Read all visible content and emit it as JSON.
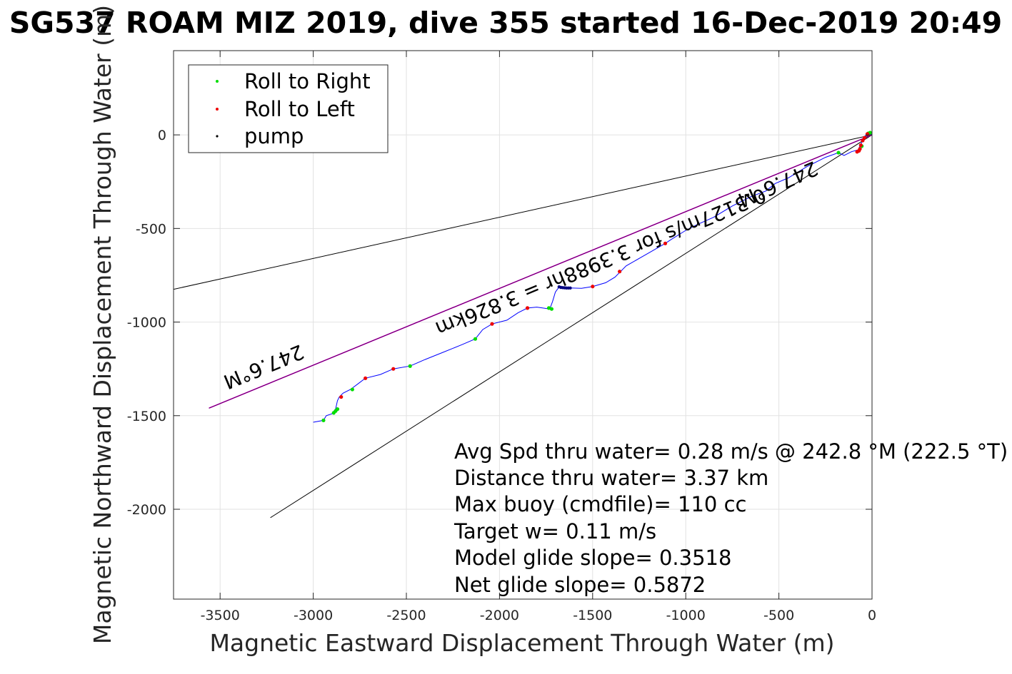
{
  "chart_data": {
    "type": "scatter",
    "title": "SG537 ROAM MIZ 2019, dive 355 started 16-Dec-2019 20:49",
    "xlabel": "Magnetic Eastward Displacement Through Water (m)",
    "ylabel": "Magnetic Northward Displacement Through Water (m)",
    "xlim": [
      -3750,
      0
    ],
    "ylim": [
      -2480,
      450
    ],
    "xticks": [
      -3500,
      -3000,
      -2500,
      -2000,
      -1500,
      -1000,
      -500,
      0
    ],
    "xtick_labels": [
      "-3500",
      "-3000",
      "-2500",
      "-2000",
      "-1500",
      "-1000",
      "-500",
      "0"
    ],
    "yticks": [
      0,
      -500,
      -1000,
      -1500,
      -2000
    ],
    "ytick_labels": [
      "0",
      "-500",
      "-1000",
      "-1500",
      "-2000"
    ],
    "grid": true,
    "legend": {
      "position": "top-left",
      "entries": [
        {
          "label": "Roll to Right",
          "color": "#00dd00"
        },
        {
          "label": "Roll to Left",
          "color": "#ee0000"
        },
        {
          "label": "pump",
          "color": "#000000"
        }
      ]
    },
    "colors": {
      "track": "#0000ff",
      "heading_line": "#cc00cc",
      "bounds": "#000000"
    },
    "track": [
      [
        0,
        0
      ],
      [
        -15,
        10
      ],
      [
        -30,
        5
      ],
      [
        -45,
        -20
      ],
      [
        -60,
        -50
      ],
      [
        -75,
        -80
      ],
      [
        -110,
        -90
      ],
      [
        -150,
        -110
      ],
      [
        -180,
        -95
      ],
      [
        -250,
        -120
      ],
      [
        -350,
        -170
      ],
      [
        -450,
        -230
      ],
      [
        -520,
        -260
      ],
      [
        -570,
        -300
      ],
      [
        -650,
        -330
      ],
      [
        -750,
        -380
      ],
      [
        -850,
        -440
      ],
      [
        -940,
        -480
      ],
      [
        -1000,
        -510
      ],
      [
        -1080,
        -560
      ],
      [
        -1110,
        -580
      ],
      [
        -1180,
        -620
      ],
      [
        -1250,
        -660
      ],
      [
        -1320,
        -700
      ],
      [
        -1350,
        -730
      ],
      [
        -1380,
        -760
      ],
      [
        -1430,
        -790
      ],
      [
        -1500,
        -810
      ],
      [
        -1560,
        -820
      ],
      [
        -1620,
        -818
      ],
      [
        -1680,
        -812
      ],
      [
        -1700,
        -840
      ],
      [
        -1715,
        -890
      ],
      [
        -1730,
        -930
      ],
      [
        -1800,
        -920
      ],
      [
        -1850,
        -925
      ],
      [
        -1900,
        -950
      ],
      [
        -1960,
        -990
      ],
      [
        -2040,
        -1010
      ],
      [
        -2090,
        -1040
      ],
      [
        -2130,
        -1090
      ],
      [
        -2200,
        -1120
      ],
      [
        -2300,
        -1160
      ],
      [
        -2400,
        -1200
      ],
      [
        -2480,
        -1235
      ],
      [
        -2570,
        -1250
      ],
      [
        -2640,
        -1280
      ],
      [
        -2720,
        -1300
      ],
      [
        -2760,
        -1330
      ],
      [
        -2800,
        -1360
      ],
      [
        -2840,
        -1380
      ],
      [
        -2860,
        -1400
      ],
      [
        -2870,
        -1420
      ],
      [
        -2880,
        -1465
      ],
      [
        -2900,
        -1490
      ],
      [
        -2930,
        -1500
      ],
      [
        -2945,
        -1525
      ],
      [
        -3000,
        -1535
      ]
    ],
    "roll_right": [
      [
        -10,
        12
      ],
      [
        -20,
        8
      ],
      [
        -55,
        -60
      ],
      [
        -180,
        -95
      ],
      [
        -1720,
        -930
      ],
      [
        -1735,
        -925
      ],
      [
        -2130,
        -1090
      ],
      [
        -2480,
        -1235
      ],
      [
        -2790,
        -1360
      ],
      [
        -2870,
        -1465
      ],
      [
        -2880,
        -1475
      ],
      [
        -2890,
        -1485
      ],
      [
        -2945,
        -1525
      ]
    ],
    "roll_left": [
      [
        -25,
        5
      ],
      [
        -40,
        -15
      ],
      [
        -50,
        -30
      ],
      [
        -60,
        -55
      ],
      [
        -65,
        -75
      ],
      [
        -70,
        -85
      ],
      [
        -80,
        -90
      ],
      [
        -1110,
        -580
      ],
      [
        -1355,
        -730
      ],
      [
        -1500,
        -810
      ],
      [
        -1850,
        -925
      ],
      [
        -2040,
        -1010
      ],
      [
        -2570,
        -1250
      ],
      [
        -2720,
        -1300
      ],
      [
        -2850,
        -1400
      ]
    ],
    "pump": [
      [
        -1620,
        -818
      ],
      [
        -1630,
        -818
      ],
      [
        -1640,
        -818
      ],
      [
        -1650,
        -817
      ],
      [
        -1660,
        -816
      ],
      [
        -1670,
        -815
      ],
      [
        -1680,
        -812
      ]
    ],
    "heading_line": [
      [
        0,
        0
      ],
      [
        -3560,
        -1460
      ]
    ],
    "bound_lines": [
      [
        [
          0,
          0
        ],
        [
          -3750,
          -825
        ]
      ],
      [
        [
          0,
          0
        ],
        [
          -3230,
          -2045
        ]
      ]
    ],
    "line_labels": [
      "247.6°M",
      "0.3127m/s for 3.3988hr = 3.826km",
      "247.6°M"
    ],
    "annotations": [
      "Avg Spd thru water=  0.28 m/s @ 242.8 °M (222.5 °T)",
      "Distance thru water=  3.37 km",
      "Max buoy (cmdfile)= 110 cc",
      "Target w= 0.11 m/s",
      "Model glide slope= 0.3518",
      "Net glide slope= 0.5872"
    ]
  }
}
